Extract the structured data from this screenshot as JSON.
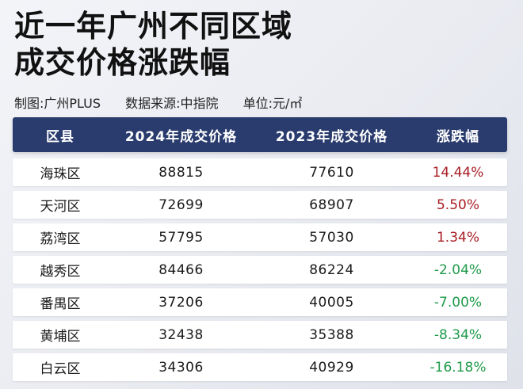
{
  "title": {
    "line1": "近一年广州不同区域",
    "line2": "成交价格涨跌幅"
  },
  "meta": {
    "made_by": "制图:广州PLUS",
    "source": "数据来源:中指院",
    "unit": "单位:元/㎡"
  },
  "table": {
    "headers": [
      "区县",
      "2024年成交价格",
      "2023年成交价格",
      "涨跌幅"
    ],
    "rows": [
      {
        "district": "海珠区",
        "price_2024": "88815",
        "price_2023": "77610",
        "change": "14.44%"
      },
      {
        "district": "天河区",
        "price_2024": "72699",
        "price_2023": "68907",
        "change": "5.50%"
      },
      {
        "district": "荔湾区",
        "price_2024": "57795",
        "price_2023": "57030",
        "change": "1.34%"
      },
      {
        "district": "越秀区",
        "price_2024": "84466",
        "price_2023": "86224",
        "change": "-2.04%"
      },
      {
        "district": "番禺区",
        "price_2024": "37206",
        "price_2023": "40005",
        "change": "-7.00%"
      },
      {
        "district": "黄埔区",
        "price_2024": "32438",
        "price_2023": "35388",
        "change": "-8.34%"
      },
      {
        "district": "白云区",
        "price_2024": "34306",
        "price_2023": "40929",
        "change": "-16.18%"
      }
    ]
  },
  "colors": {
    "header_bg": "#2a3c6e",
    "positive": "#a81e24",
    "negative": "#1f9a4a"
  }
}
